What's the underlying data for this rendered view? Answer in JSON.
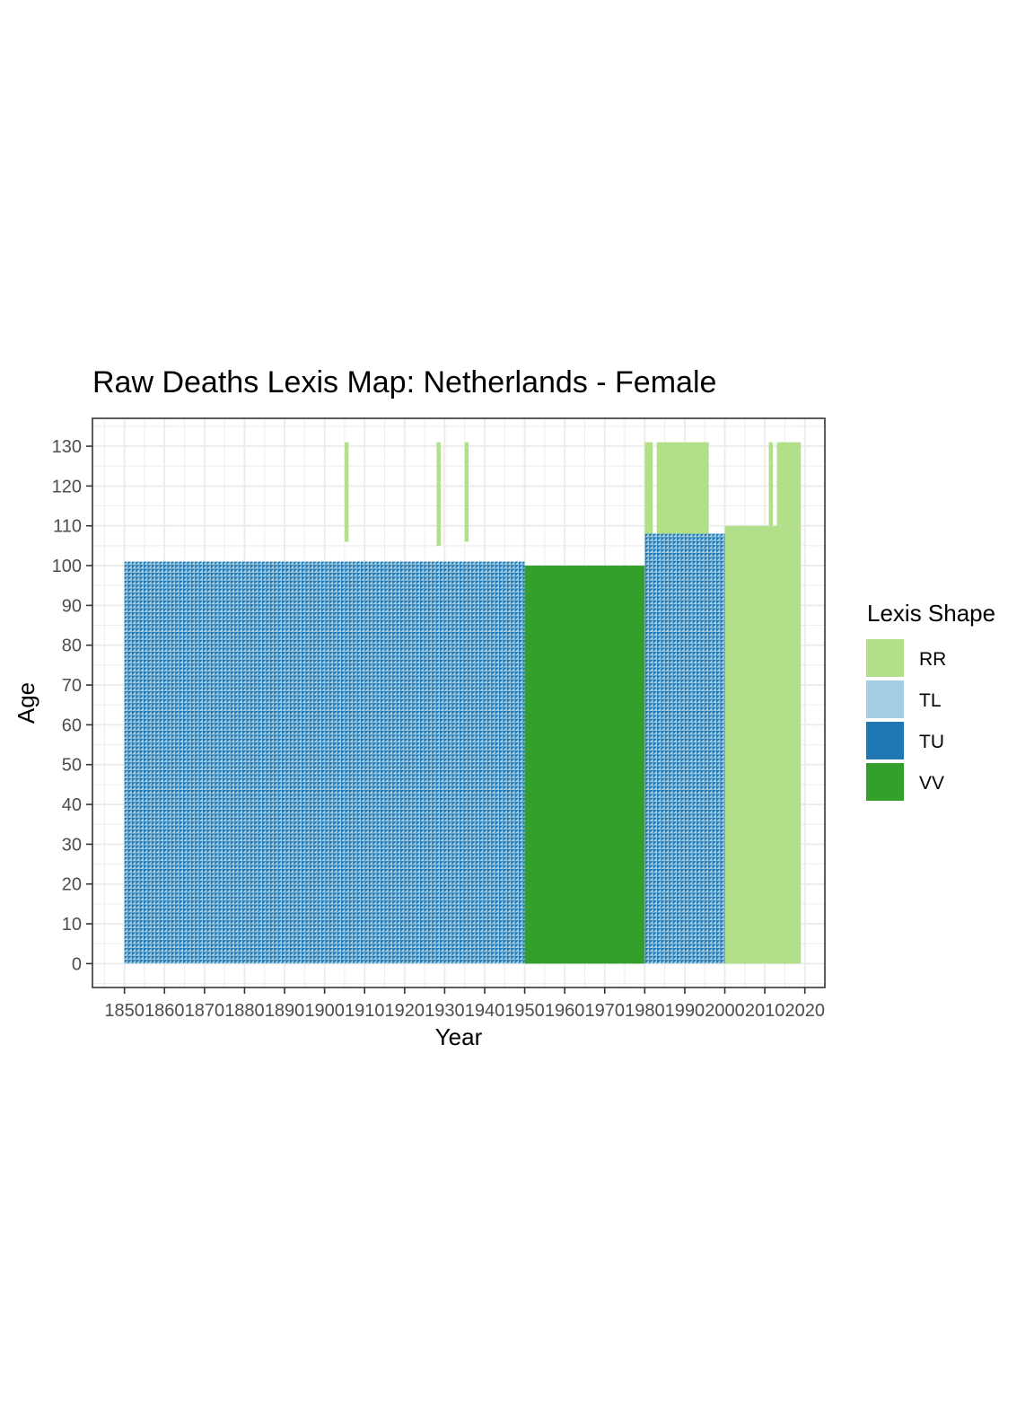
{
  "chart_data": {
    "type": "heatmap",
    "title": "Raw Deaths Lexis Map: Netherlands - Female",
    "xlabel": "Year",
    "ylabel": "Age",
    "xlim": [
      1842,
      2025
    ],
    "ylim": [
      -6,
      137
    ],
    "x_ticks": [
      "1850",
      "1860",
      "1870",
      "1880",
      "1890",
      "1900",
      "1910",
      "1920",
      "1930",
      "1940",
      "1950",
      "1960",
      "1970",
      "1980",
      "1990",
      "2000",
      "2010",
      "2020"
    ],
    "y_ticks": [
      "0",
      "10",
      "20",
      "30",
      "40",
      "50",
      "60",
      "70",
      "80",
      "90",
      "100",
      "110",
      "120",
      "130"
    ],
    "grid": true,
    "legend": {
      "title": "Lexis Shape",
      "position": "right",
      "entries": [
        {
          "label": "RR",
          "color": "#b2df8a"
        },
        {
          "label": "TL",
          "color": "#a6cee3"
        },
        {
          "label": "TU",
          "color": "#1f78b4"
        },
        {
          "label": "VV",
          "color": "#33a02c"
        }
      ]
    },
    "regions": [
      {
        "shape": "TU/TL",
        "year_start": 1850,
        "year_end": 1950,
        "age_start": 0,
        "age_end": 101
      },
      {
        "shape": "VV",
        "year_start": 1950,
        "year_end": 1980,
        "age_start": 0,
        "age_end": 100
      },
      {
        "shape": "TU/TL",
        "year_start": 1980,
        "year_end": 2000,
        "age_start": 0,
        "age_end": 108
      },
      {
        "shape": "RR",
        "year_start": 2000,
        "year_end": 2019,
        "age_start": 0,
        "age_end": 110
      },
      {
        "shape": "RR",
        "year_start": 1905,
        "year_end": 1906,
        "age_start": 106,
        "age_end": 131
      },
      {
        "shape": "RR",
        "year_start": 1928,
        "year_end": 1929,
        "age_start": 105,
        "age_end": 131
      },
      {
        "shape": "RR",
        "year_start": 1935,
        "year_end": 1936,
        "age_start": 106,
        "age_end": 131
      },
      {
        "shape": "RR",
        "year_start": 1980,
        "year_end": 1982,
        "age_start": 108,
        "age_end": 131
      },
      {
        "shape": "RR",
        "year_start": 1983,
        "year_end": 1996,
        "age_start": 108,
        "age_end": 131
      },
      {
        "shape": "RR",
        "year_start": 2011,
        "year_end": 2012,
        "age_start": 110,
        "age_end": 131
      },
      {
        "shape": "RR",
        "year_start": 2013,
        "year_end": 2019,
        "age_start": 110,
        "age_end": 131
      }
    ]
  }
}
